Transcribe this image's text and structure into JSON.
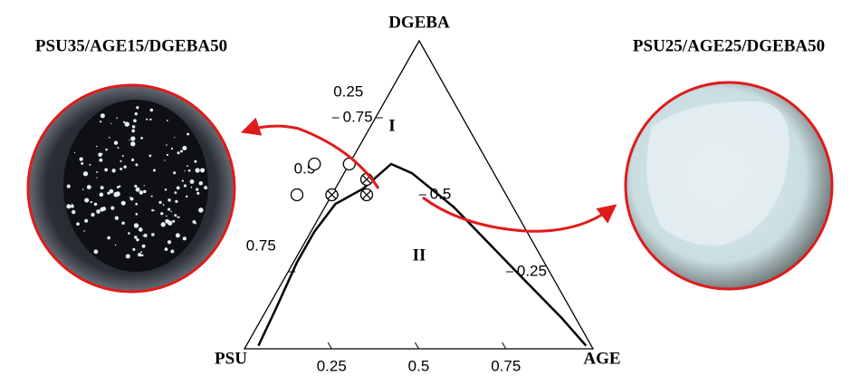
{
  "chart_data": {
    "type": "ternary",
    "vertices": {
      "top": "DGEBA",
      "left": "PSU",
      "right": "AGE"
    },
    "left_ticks": [
      0.25,
      0.5,
      0.75
    ],
    "right_ticks": [
      0.75,
      0.5,
      0.25
    ],
    "bottom_ticks": [
      0.25,
      0.5,
      0.75
    ],
    "regions": [
      "I",
      "II"
    ],
    "annotations": [
      "PSU35/AGE15/DGEBA50",
      "PSU25/AGE25/DGEBA50"
    ],
    "curve": {
      "color": "#000",
      "age": [
        0.04,
        0.09,
        0.15,
        0.2,
        0.26,
        0.34,
        0.39,
        0.42,
        0.48,
        0.6,
        0.78,
        0.91,
        0.98
      ],
      "dgeba": [
        0.01,
        0.13,
        0.28,
        0.38,
        0.47,
        0.52,
        0.57,
        0.6,
        0.57,
        0.46,
        0.25,
        0.1,
        0.01
      ]
    },
    "points": [
      {
        "marker": "open",
        "age": [
          0.15,
          0.2,
          0.3
        ],
        "dgeba": [
          0.5,
          0.6,
          0.6
        ]
      },
      {
        "marker": "crossed",
        "age": [
          0.25,
          0.35,
          0.35
        ],
        "dgeba": [
          0.5,
          0.55,
          0.5
        ]
      }
    ]
  }
}
